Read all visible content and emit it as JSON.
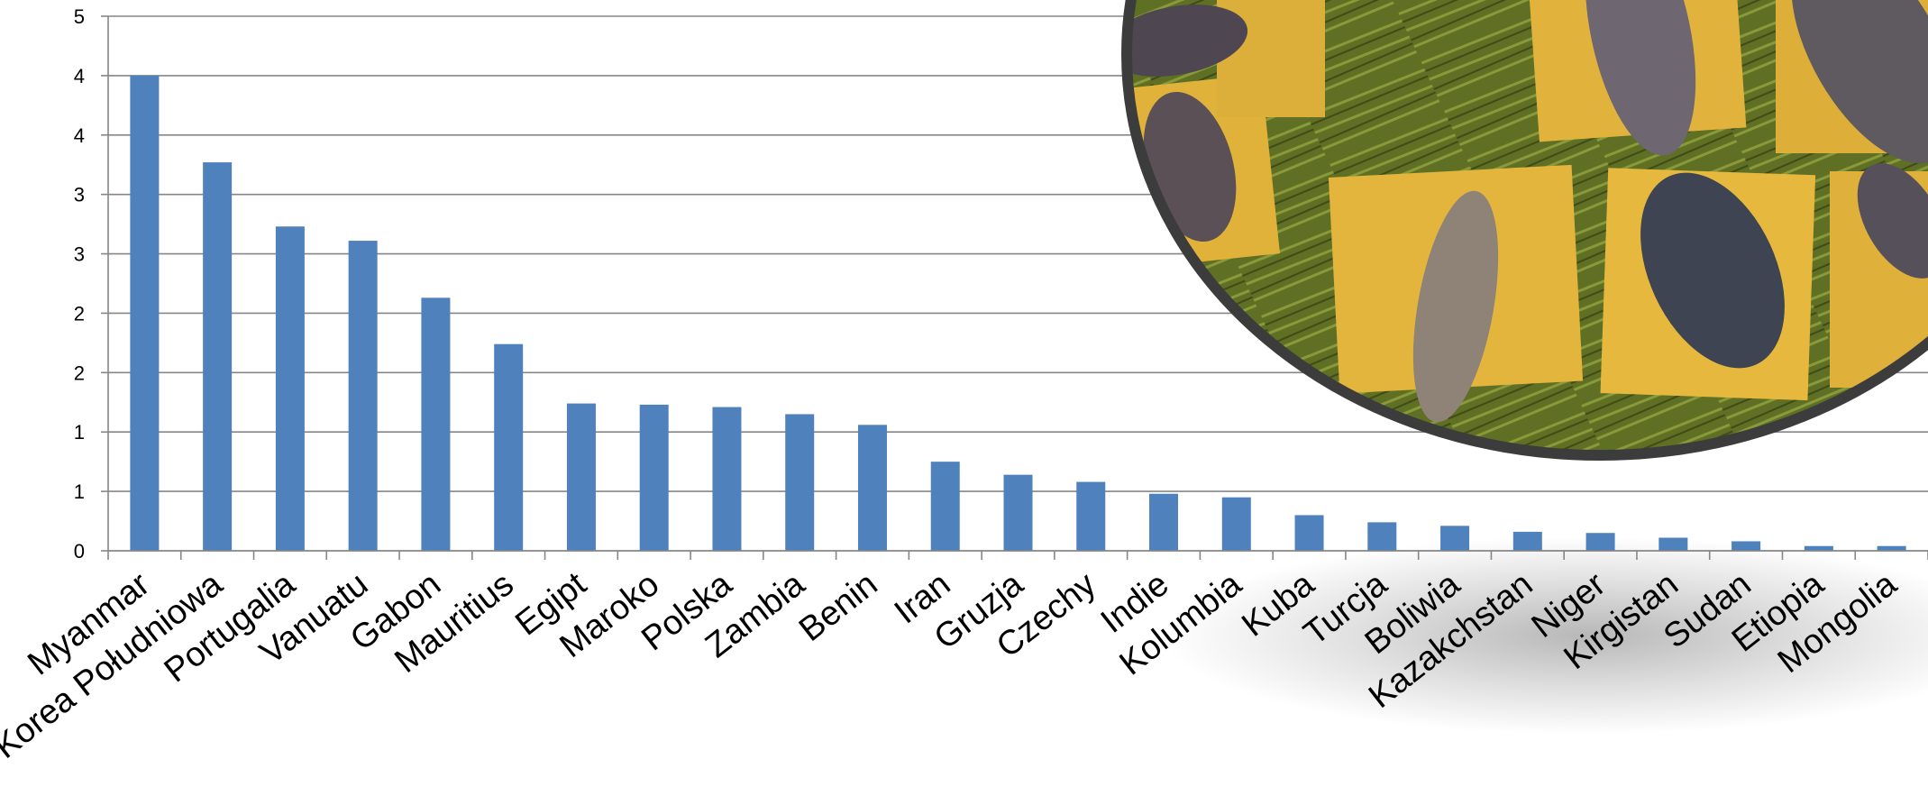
{
  "chart_data": {
    "type": "bar",
    "title": "",
    "xlabel": "",
    "ylabel": "",
    "ylim": [
      0,
      4.5
    ],
    "y_tick_labels": [
      "0",
      "1",
      "1",
      "2",
      "2",
      "3",
      "3",
      "4",
      "4",
      "5"
    ],
    "grid": true,
    "legend": "none",
    "categories": [
      "Myanmar",
      "Korea Południowa",
      "Portugalia",
      "Vanuatu",
      "Gabon",
      "Mauritius",
      "Egipt",
      "Maroko",
      "Polska",
      "Zambia",
      "Benin",
      "Iran",
      "Gruzja",
      "Czechy",
      "Indie",
      "Kolumbia",
      "Kuba",
      "Turcja",
      "Boliwia",
      "Kazakchstan",
      "Niger",
      "Kirgistan",
      "Sudan",
      "Etiopia",
      "Mongolia"
    ],
    "values": [
      4.0,
      3.27,
      2.73,
      2.61,
      2.13,
      1.74,
      1.24,
      1.23,
      1.21,
      1.15,
      1.06,
      0.75,
      0.64,
      0.58,
      0.48,
      0.45,
      0.3,
      0.24,
      0.21,
      0.16,
      0.15,
      0.11,
      0.08,
      0.04,
      0.04
    ],
    "colors": {
      "bar": "#4f81bd",
      "grid": "#868686",
      "axis": "#868686"
    }
  },
  "photo": {
    "icon": "food-photo-fish-on-banana-leaves"
  }
}
